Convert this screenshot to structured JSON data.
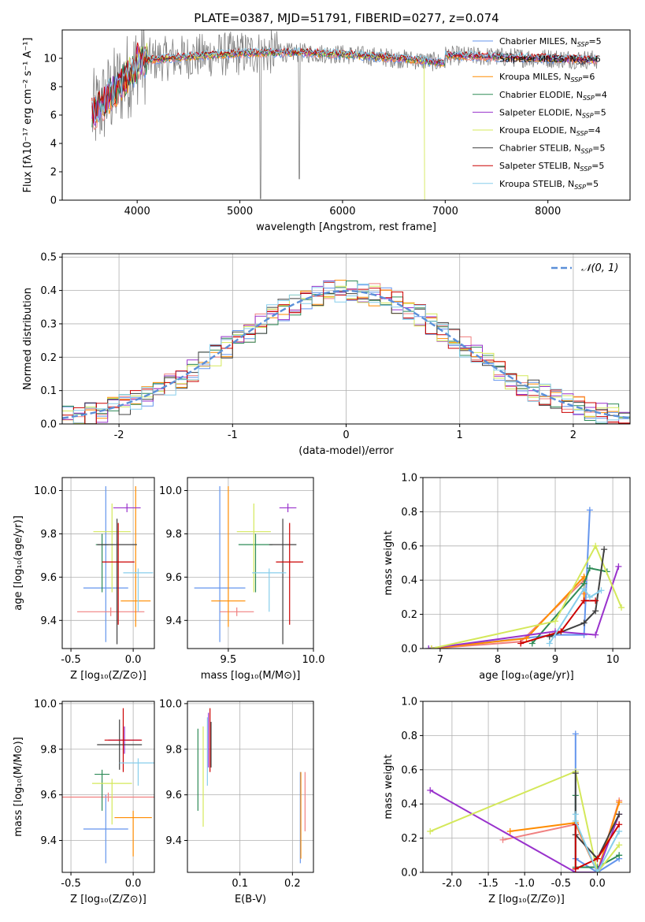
{
  "figure": {
    "title": "PLATE=0387, MJD=51791, FIBERID=0277, z=0.074"
  },
  "chart_data": [
    {
      "id": "spectrum",
      "type": "line",
      "xlabel": "wavelength [Angstrom, rest frame]",
      "ylabel": "Flux [fλ10⁻¹⁷ erg cm⁻² s⁻¹ A⁻¹]",
      "xlim": [
        3270,
        8800
      ],
      "ylim": [
        0,
        12
      ],
      "xticks": [
        4000,
        5000,
        6000,
        7000,
        8000
      ],
      "yticks": [
        0,
        2,
        4,
        6,
        8,
        10
      ],
      "grid": false,
      "legend_position": "top-right",
      "data_range": [
        3560,
        8480
      ],
      "series": [
        {
          "name": "Chabrier MILES, N",
          "sub": "SSP",
          "suffix": "=5",
          "color": "#6495ed"
        },
        {
          "name": "Salpeter MILES, N",
          "sub": "SSP",
          "suffix": "=6",
          "color": "#f08080"
        },
        {
          "name": "Kroupa MILES, N",
          "sub": "SSP",
          "suffix": "=6",
          "color": "#ff8c00"
        },
        {
          "name": "Chabrier ELODIE, N",
          "sub": "SSP",
          "suffix": "=4",
          "color": "#2e8b57"
        },
        {
          "name": "Salpeter ELODIE, N",
          "sub": "SSP",
          "suffix": "=5",
          "color": "#9932cc"
        },
        {
          "name": "Kroupa ELODIE, N",
          "sub": "SSP",
          "suffix": "=4",
          "color": "#d4e85a"
        },
        {
          "name": "Chabrier STELIB, N",
          "sub": "SSP",
          "suffix": "=5",
          "color": "#404040"
        },
        {
          "name": "Salpeter STELIB, N",
          "sub": "SSP",
          "suffix": "=5",
          "color": "#cc0000"
        },
        {
          "name": "Kroupa STELIB, N",
          "sub": "SSP",
          "suffix": "=5",
          "color": "#87ceeb"
        }
      ]
    },
    {
      "id": "residuals",
      "type": "histogram",
      "xlabel": "(data-model)/error",
      "ylabel": "Normed distribution",
      "xlim": [
        -2.5,
        2.5
      ],
      "ylim": [
        0,
        0.51
      ],
      "xticks": [
        -2,
        -1,
        0,
        1,
        2
      ],
      "yticks": [
        0.0,
        0.1,
        0.2,
        0.3,
        0.4,
        0.5
      ],
      "grid": true,
      "legend_position": "top-right",
      "legend_label": "𝒩(0, 1)",
      "reference_curve": {
        "type": "gaussian",
        "mean": 0,
        "sigma": 1,
        "color": "#5b8fd8"
      },
      "bin_width": 0.1,
      "bin_start": -2.5
    },
    {
      "id": "age_vs_Z",
      "type": "scatter",
      "xlabel": "Z [log₁₀(Z/Z⊙)]",
      "ylabel": "age  [log₁₀(age/yr)]",
      "xlim": [
        -0.57,
        0.17
      ],
      "ylim": [
        9.27,
        10.06
      ],
      "xticks": [
        -0.5,
        0.0
      ],
      "yticks": [
        9.4,
        9.6,
        9.8,
        10.0
      ],
      "grid": true,
      "points": [
        {
          "x": -0.22,
          "xerr": 0.18,
          "y": 9.55,
          "yerr_lo": 0.25,
          "yerr_hi": 0.47
        },
        {
          "x": -0.18,
          "xerr": 0.27,
          "y": 9.44,
          "yerr_lo": 0.02,
          "yerr_hi": 0.02
        },
        {
          "x": 0.02,
          "xerr": 0.12,
          "y": 9.49,
          "yerr_lo": 0.12,
          "yerr_hi": 0.53
        },
        {
          "x": -0.25,
          "xerr": 0.05,
          "y": 9.75,
          "yerr_lo": 0.22,
          "yerr_hi": 0.05
        },
        {
          "x": -0.05,
          "xerr": 0.11,
          "y": 9.92,
          "yerr_lo": 0.02,
          "yerr_hi": 0.02
        },
        {
          "x": -0.17,
          "xerr": 0.15,
          "y": 9.81,
          "yerr_lo": 0.28,
          "yerr_hi": 0.13
        },
        {
          "x": -0.13,
          "xerr": 0.16,
          "y": 9.75,
          "yerr_lo": 0.46,
          "yerr_hi": 0.12
        },
        {
          "x": -0.12,
          "xerr": 0.13,
          "y": 9.67,
          "yerr_lo": 0.29,
          "yerr_hi": 0.18
        },
        {
          "x": 0.04,
          "xerr": 0.12,
          "y": 9.62,
          "yerr_lo": 0.18,
          "yerr_hi": 0.02
        }
      ]
    },
    {
      "id": "age_vs_mass",
      "type": "scatter",
      "xlabel": "mass [log₁₀(M/M⊙)]",
      "xlim": [
        9.26,
        10.0
      ],
      "ylim": [
        9.27,
        10.06
      ],
      "xticks": [
        9.5,
        10.0
      ],
      "yticks": [
        9.4,
        9.6,
        9.8,
        10.0
      ],
      "grid": true,
      "points": [
        {
          "x": 9.45,
          "xerr": 0.15,
          "y": 9.55,
          "yerr_lo": 0.25,
          "yerr_hi": 0.47
        },
        {
          "x": 9.55,
          "xerr": 0.1,
          "y": 9.44,
          "yerr_lo": 0.02,
          "yerr_hi": 0.02
        },
        {
          "x": 9.5,
          "xerr": 0.1,
          "y": 9.49,
          "yerr_lo": 0.12,
          "yerr_hi": 0.53
        },
        {
          "x": 9.66,
          "xerr": 0.1,
          "y": 9.75,
          "yerr_lo": 0.22,
          "yerr_hi": 0.05
        },
        {
          "x": 9.85,
          "xerr": 0.05,
          "y": 9.92,
          "yerr_lo": 0.02,
          "yerr_hi": 0.02
        },
        {
          "x": 9.65,
          "xerr": 0.1,
          "y": 9.81,
          "yerr_lo": 0.28,
          "yerr_hi": 0.13
        },
        {
          "x": 9.82,
          "xerr": 0.08,
          "y": 9.75,
          "yerr_lo": 0.46,
          "yerr_hi": 0.12
        },
        {
          "x": 9.86,
          "xerr": 0.08,
          "y": 9.67,
          "yerr_lo": 0.29,
          "yerr_hi": 0.18
        },
        {
          "x": 9.74,
          "xerr": 0.1,
          "y": 9.62,
          "yerr_lo": 0.18,
          "yerr_hi": 0.02
        }
      ]
    },
    {
      "id": "weight_vs_age",
      "type": "line",
      "xlabel": "age  [log₁₀(age/yr)]",
      "ylabel": "mass weight",
      "xlim": [
        6.7,
        10.3
      ],
      "ylim": [
        0,
        1.0
      ],
      "xticks": [
        7,
        8,
        9,
        10
      ],
      "yticks": [
        0.0,
        0.2,
        0.4,
        0.6,
        0.8,
        1.0
      ],
      "grid": true,
      "series": [
        {
          "x": [
            6.8,
            9.0,
            9.5,
            9.6
          ],
          "y": [
            0.0,
            0.08,
            0.08,
            0.81
          ]
        },
        {
          "x": [
            6.85,
            8.4,
            9.5,
            9.5
          ],
          "y": [
            0.0,
            0.04,
            0.4,
            0.32
          ]
        },
        {
          "x": [
            6.85,
            8.5,
            9.5,
            9.5
          ],
          "y": [
            0.0,
            0.06,
            0.42,
            0.28
          ]
        },
        {
          "x": [
            8.6,
            9.5,
            9.6,
            9.9
          ],
          "y": [
            0.03,
            0.38,
            0.47,
            0.45
          ]
        },
        {
          "x": [
            6.8,
            9.0,
            9.7,
            10.1
          ],
          "y": [
            0.0,
            0.1,
            0.08,
            0.48
          ]
        },
        {
          "x": [
            6.85,
            9.0,
            9.7,
            10.15
          ],
          "y": [
            0.0,
            0.16,
            0.6,
            0.24
          ]
        },
        {
          "x": [
            8.9,
            9.5,
            9.7,
            9.85
          ],
          "y": [
            0.07,
            0.15,
            0.22,
            0.58
          ]
        },
        {
          "x": [
            8.4,
            9.1,
            9.5,
            9.7
          ],
          "y": [
            0.03,
            0.1,
            0.28,
            0.28
          ]
        },
        {
          "x": [
            8.9,
            9.5,
            9.6,
            9.8
          ],
          "y": [
            0.03,
            0.35,
            0.3,
            0.34
          ]
        }
      ]
    },
    {
      "id": "mass_vs_Z",
      "type": "scatter",
      "xlabel": "Z [log₁₀(Z/Z⊙)]",
      "ylabel": "mass [log₁₀(M/M⊙)]",
      "xlim": [
        -0.57,
        0.17
      ],
      "ylim": [
        9.26,
        10.01
      ],
      "xticks": [
        -0.5,
        0.0
      ],
      "yticks": [
        9.4,
        9.6,
        9.8,
        10.0
      ],
      "grid": true,
      "points": [
        {
          "x": -0.22,
          "xerr": 0.18,
          "y": 9.45,
          "yerr_lo": 0.15,
          "yerr_hi": 0.15
        },
        {
          "x": -0.2,
          "xerr": 0.4,
          "y": 9.59,
          "yerr_lo": 0.02,
          "yerr_hi": 0.02
        },
        {
          "x": 0.0,
          "xerr": 0.15,
          "y": 9.5,
          "yerr_lo": 0.17,
          "yerr_hi": 0.03
        },
        {
          "x": -0.25,
          "xerr": 0.06,
          "y": 9.69,
          "yerr_lo": 0.16,
          "yerr_hi": 0.02
        },
        {
          "x": -0.07,
          "xerr": 0.13,
          "y": 9.84,
          "yerr_lo": 0.06,
          "yerr_hi": 0.06
        },
        {
          "x": -0.17,
          "xerr": 0.16,
          "y": 9.65,
          "yerr_lo": 0.18,
          "yerr_hi": 0.02
        },
        {
          "x": -0.11,
          "xerr": 0.18,
          "y": 9.82,
          "yerr_lo": 0.11,
          "yerr_hi": 0.11
        },
        {
          "x": -0.08,
          "xerr": 0.15,
          "y": 9.84,
          "yerr_lo": 0.14,
          "yerr_hi": 0.14
        },
        {
          "x": 0.04,
          "xerr": 0.15,
          "y": 9.74,
          "yerr_lo": 0.1,
          "yerr_hi": 0.02
        }
      ]
    },
    {
      "id": "mass_vs_ebv",
      "type": "scatter",
      "xlabel": "E(B-V)",
      "xlim": [
        0.0,
        0.24
      ],
      "ylim": [
        9.26,
        10.01
      ],
      "xticks": [
        0.1,
        0.2
      ],
      "yticks": [
        9.4,
        9.6,
        9.8,
        10.0
      ],
      "grid": true,
      "points": [
        {
          "x": 0.215,
          "y": 9.52,
          "yerr_lo": 0.22,
          "yerr_hi": 0.18
        },
        {
          "x": 0.224,
          "y": 9.58,
          "yerr_lo": 0.14,
          "yerr_hi": 0.12
        },
        {
          "x": 0.216,
          "y": 9.5,
          "yerr_lo": 0.18,
          "yerr_hi": 0.2
        },
        {
          "x": 0.02,
          "y": 9.71,
          "yerr_lo": 0.18,
          "yerr_hi": 0.18
        },
        {
          "x": 0.04,
          "y": 9.84,
          "yerr_lo": 0.12,
          "yerr_hi": 0.12
        },
        {
          "x": 0.03,
          "y": 9.68,
          "yerr_lo": 0.22,
          "yerr_hi": 0.22
        },
        {
          "x": 0.045,
          "y": 9.82,
          "yerr_lo": 0.1,
          "yerr_hi": 0.1
        },
        {
          "x": 0.043,
          "y": 9.84,
          "yerr_lo": 0.14,
          "yerr_hi": 0.14
        },
        {
          "x": 0.038,
          "y": 9.74,
          "yerr_lo": 0.1,
          "yerr_hi": 0.2
        }
      ]
    },
    {
      "id": "weight_vs_Z",
      "type": "line",
      "xlabel": "Z [log₁₀(Z/Z⊙)]",
      "ylabel": "mass weight",
      "xlim": [
        -2.4,
        0.45
      ],
      "ylim": [
        0,
        1.0
      ],
      "xticks": [
        -2.0,
        -1.5,
        -1.0,
        -0.5,
        0.0
      ],
      "yticks": [
        0.0,
        0.2,
        0.4,
        0.6,
        0.8,
        1.0
      ],
      "grid": true,
      "series": [
        {
          "x": [
            -0.3,
            -0.3,
            0.0,
            0.3
          ],
          "y": [
            0.81,
            0.08,
            0.0,
            0.08
          ]
        },
        {
          "x": [
            -1.3,
            -0.3,
            0.0,
            0.3
          ],
          "y": [
            0.19,
            0.28,
            0.0,
            0.42
          ]
        },
        {
          "x": [
            -1.2,
            -0.3,
            0.0,
            0.3
          ],
          "y": [
            0.24,
            0.29,
            0.0,
            0.41
          ]
        },
        {
          "x": [
            -0.3,
            -0.3,
            0.0,
            0.3
          ],
          "y": [
            0.45,
            0.03,
            0.03,
            0.1
          ]
        },
        {
          "x": [
            -2.3,
            -0.3,
            0.0,
            0.3
          ],
          "y": [
            0.48,
            0.0,
            0.0,
            0.34
          ]
        },
        {
          "x": [
            -2.3,
            -0.3,
            0.0,
            0.3
          ],
          "y": [
            0.24,
            0.59,
            0.0,
            0.16
          ]
        },
        {
          "x": [
            -0.3,
            -0.3,
            0.0,
            0.3
          ],
          "y": [
            0.58,
            0.22,
            0.08,
            0.34
          ]
        },
        {
          "x": [
            -0.3,
            -0.3,
            0.0,
            0.3
          ],
          "y": [
            0.28,
            0.02,
            0.08,
            0.28
          ]
        },
        {
          "x": [
            -0.3,
            -0.3,
            0.0,
            0.3
          ],
          "y": [
            0.34,
            0.3,
            0.0,
            0.24
          ]
        }
      ]
    }
  ]
}
